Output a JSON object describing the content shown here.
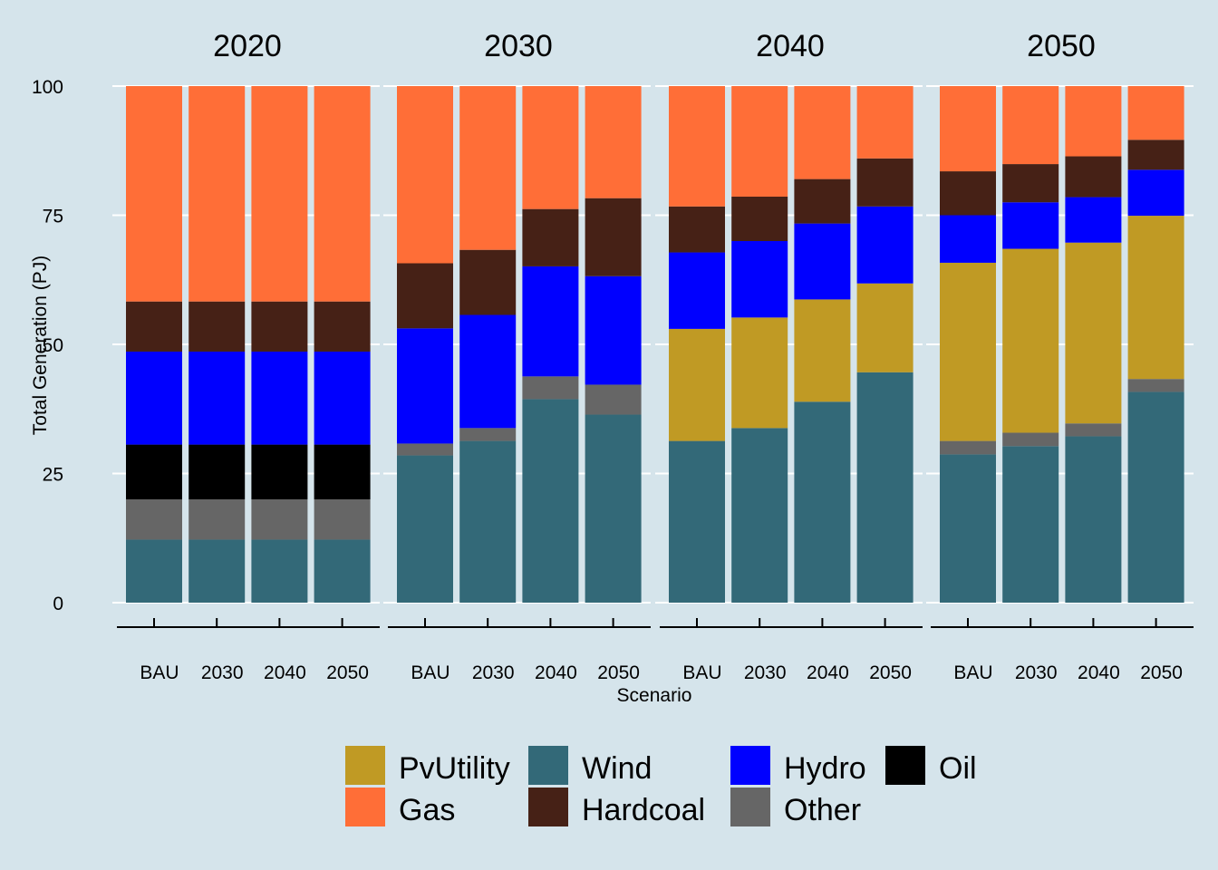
{
  "chart_data": {
    "type": "bar",
    "stacked": true,
    "facet_variable": "year",
    "facets": [
      "2020",
      "2030",
      "2040",
      "2050"
    ],
    "categories": [
      "BAU",
      "2030",
      "2040",
      "2050"
    ],
    "xlabel": "Scenario",
    "ylabel": "Total Generation (PJ)",
    "ylim": [
      0,
      100
    ],
    "yticks": [
      0,
      25,
      50,
      75,
      100
    ],
    "grid": true,
    "legend": {
      "position": "bottom"
    },
    "stack_order": [
      "Wind",
      "Other",
      "Oil",
      "PvUtility",
      "Hydro",
      "Hardcoal",
      "Gas"
    ],
    "legend_order": [
      "PvUtility",
      "Gas",
      "Wind",
      "Hardcoal",
      "Hydro",
      "Other",
      "Oil"
    ],
    "colors": {
      "PvUtility": "#c09a24",
      "Gas": "#ff6e37",
      "Wind": "#336978",
      "Hardcoal": "#462116",
      "Hydro": "#0000ff",
      "Other": "#666666",
      "Oil": "#000000"
    },
    "panels": [
      {
        "facet": "2020",
        "series": [
          {
            "name": "Wind",
            "values": [
              12.2,
              12.2,
              12.2,
              12.2
            ]
          },
          {
            "name": "Other",
            "values": [
              7.8,
              7.8,
              7.8,
              7.8
            ]
          },
          {
            "name": "Oil",
            "values": [
              10.6,
              10.6,
              10.6,
              10.6
            ]
          },
          {
            "name": "PvUtility",
            "values": [
              0,
              0,
              0,
              0
            ]
          },
          {
            "name": "Hydro",
            "values": [
              18.0,
              18.0,
              18.0,
              18.0
            ]
          },
          {
            "name": "Hardcoal",
            "values": [
              9.7,
              9.7,
              9.7,
              9.7
            ]
          },
          {
            "name": "Gas",
            "values": [
              41.7,
              41.7,
              41.7,
              41.7
            ]
          }
        ]
      },
      {
        "facet": "2030",
        "series": [
          {
            "name": "Wind",
            "values": [
              28.5,
              31.3,
              39.4,
              36.4
            ]
          },
          {
            "name": "Other",
            "values": [
              2.3,
              2.5,
              4.4,
              5.8
            ]
          },
          {
            "name": "Oil",
            "values": [
              0,
              0,
              0,
              0
            ]
          },
          {
            "name": "PvUtility",
            "values": [
              0,
              0,
              0,
              0
            ]
          },
          {
            "name": "Hydro",
            "values": [
              22.3,
              21.9,
              21.3,
              21.0
            ]
          },
          {
            "name": "Hardcoal",
            "values": [
              12.6,
              12.6,
              11.1,
              15.1
            ]
          },
          {
            "name": "Gas",
            "values": [
              34.3,
              31.7,
              23.8,
              21.7
            ]
          }
        ]
      },
      {
        "facet": "2040",
        "series": [
          {
            "name": "Wind",
            "values": [
              31.3,
              33.8,
              38.9,
              44.6
            ]
          },
          {
            "name": "Other",
            "values": [
              0,
              0,
              0,
              0
            ]
          },
          {
            "name": "Oil",
            "values": [
              0,
              0,
              0,
              0
            ]
          },
          {
            "name": "PvUtility",
            "values": [
              21.7,
              21.4,
              19.8,
              17.2
            ]
          },
          {
            "name": "Hydro",
            "values": [
              14.8,
              14.8,
              14.7,
              14.9
            ]
          },
          {
            "name": "Hardcoal",
            "values": [
              8.9,
              8.6,
              8.6,
              9.3
            ]
          },
          {
            "name": "Gas",
            "values": [
              23.3,
              21.4,
              18.0,
              14.0
            ]
          }
        ]
      },
      {
        "facet": "2050",
        "series": [
          {
            "name": "Wind",
            "values": [
              28.7,
              30.3,
              32.2,
              40.8
            ]
          },
          {
            "name": "Other",
            "values": [
              2.6,
              2.6,
              2.5,
              2.5
            ]
          },
          {
            "name": "Oil",
            "values": [
              0,
              0,
              0,
              0
            ]
          },
          {
            "name": "PvUtility",
            "values": [
              34.5,
              35.6,
              35.0,
              31.6
            ]
          },
          {
            "name": "Hydro",
            "values": [
              9.2,
              9.0,
              8.8,
              8.9
            ]
          },
          {
            "name": "Hardcoal",
            "values": [
              8.5,
              7.4,
              7.9,
              5.8
            ]
          },
          {
            "name": "Gas",
            "values": [
              16.5,
              15.1,
              13.6,
              10.4
            ]
          }
        ]
      }
    ]
  }
}
